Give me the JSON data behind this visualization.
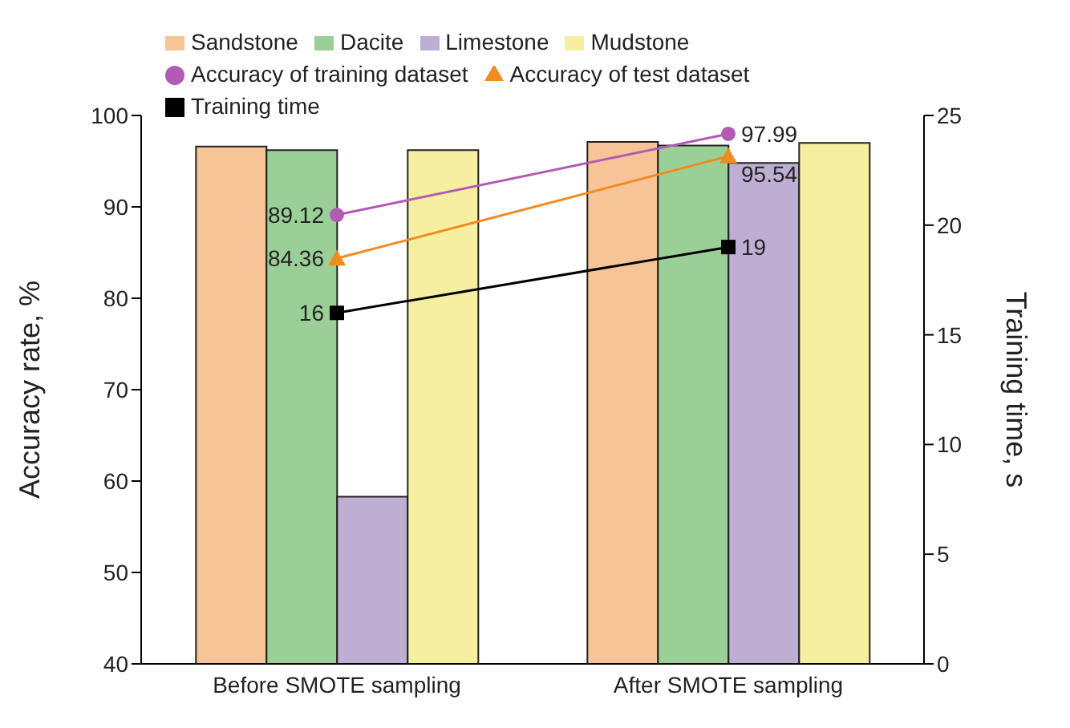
{
  "chart_data": {
    "type": "bar",
    "categories": [
      "Before SMOTE sampling",
      "After SMOTE sampling"
    ],
    "ylabel": "Accuracy rate, %",
    "y2label": "Training time, s",
    "ylim": [
      40,
      100
    ],
    "yticks": [
      40,
      50,
      60,
      70,
      80,
      90,
      100
    ],
    "y2lim": [
      0,
      25
    ],
    "y2ticks": [
      0,
      5,
      10,
      15,
      20,
      25
    ],
    "legend": "top",
    "grid": false,
    "series": [
      {
        "name": "Sandstone",
        "color": "#f6c497",
        "values": [
          96.6,
          97.1
        ]
      },
      {
        "name": "Dacite",
        "color": "#9bcf98",
        "values": [
          96.2,
          96.7
        ]
      },
      {
        "name": "Limestone",
        "color": "#bfaed4",
        "values": [
          58.3,
          94.8
        ]
      },
      {
        "name": "Mudstone",
        "color": "#f5ef9f",
        "values": [
          96.2,
          97.0
        ]
      },
      {
        "name": "Accuracy of training dataset",
        "type": "line",
        "marker": "circle",
        "color": "#b35ab5",
        "values": [
          89.12,
          97.99
        ],
        "value_labels": [
          "89.12",
          "97.99"
        ]
      },
      {
        "name": "Accuracy of test dataset",
        "type": "line",
        "marker": "triangle",
        "color": "#f28a1f",
        "values": [
          84.36,
          95.54
        ],
        "value_labels": [
          "84.36",
          "95.54"
        ]
      },
      {
        "name": "Training time",
        "type": "line",
        "marker": "square",
        "color": "#000000",
        "axis": "y2",
        "values": [
          16,
          19
        ],
        "value_labels": [
          "16",
          "19"
        ]
      }
    ]
  }
}
